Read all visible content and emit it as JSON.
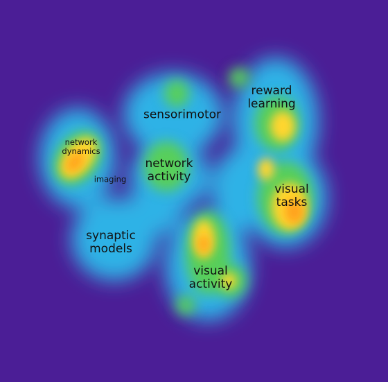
{
  "map": {
    "colors": {
      "background": "#4b1e96",
      "cyan": "#2fb2e6",
      "green": "#59cf5a",
      "yellow": "#ffd52e",
      "orange": "#ffa21a"
    },
    "labels": {
      "reward_learning": "reward\nlearning",
      "sensorimotor": "sensorimotor",
      "network_dynamics": "network\ndynamics",
      "imaging": "imaging",
      "network_activity": "network\nactivity",
      "visual_tasks": "visual\ntasks",
      "synaptic_models": "synaptic\nmodels",
      "visual_activity": "visual\nactivity"
    }
  }
}
